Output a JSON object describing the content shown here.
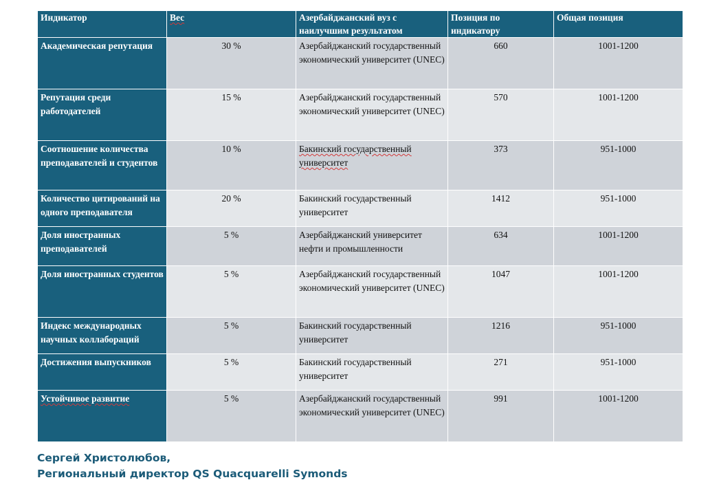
{
  "table": {
    "headers": {
      "indicator": "Индикатор",
      "weight": "Вес",
      "best_university": "Азербайджанский вуз с наилучшим результатом",
      "indicator_position": "Позиция по индикатору",
      "overall_position": "Общая позиция"
    },
    "rows": [
      {
        "indicator": "Академическая репутация",
        "weight": "30 %",
        "university": "Азербайджанский государственный экономический университет (UNEC)",
        "position": "660",
        "overall": "1001-1200"
      },
      {
        "indicator": "Репутация среди работодателей",
        "weight": "15 %",
        "university": "Азербайджанский государственный экономический университет (UNEC)",
        "position": "570",
        "overall": "1001-1200"
      },
      {
        "indicator": "Соотношение количества преподавателей и студентов",
        "weight": "10 %",
        "university": "Бакинский государственный университет",
        "position": "373",
        "overall": "951-1000"
      },
      {
        "indicator": "Количество цитирований на одного преподавателя",
        "weight": "20 %",
        "university": "Бакинский государственный университет",
        "position": "1412",
        "overall": "951-1000"
      },
      {
        "indicator": "Доля иностранных преподавателей",
        "weight": "5 %",
        "university": "Азербайджанский университет нефти и промышленности",
        "position": "634",
        "overall": "1001-1200"
      },
      {
        "indicator": "Доля иностранных студентов",
        "weight": "5 %",
        "university": "Азербайджанский государственный экономический университет (UNEC)",
        "position": "1047",
        "overall": "1001-1200"
      },
      {
        "indicator": "Индекс международных научных коллабораций",
        "weight": "5 %",
        "university": "Бакинский государственный университет",
        "position": "1216",
        "overall": "951-1000"
      },
      {
        "indicator": "Достижения выпускников",
        "weight": "5 %",
        "university": "Бакинский государственный университет",
        "position": "271",
        "overall": "951-1000"
      },
      {
        "indicator": "Устойчивое развитие",
        "weight": "5 %",
        "university": "Азербайджанский государственный экономический университет (UNEC)",
        "position": "991",
        "overall": "1001-1200"
      }
    ]
  },
  "caption": {
    "line1": "Сергей Христолюбов,",
    "line2": "Региональный директор QS Quacquarelli Symonds"
  },
  "colors": {
    "header_bg": "#19607d",
    "cell_dark": "#cfd3d9",
    "cell_light": "#e4e7ea",
    "caption": "#1b5b78"
  }
}
